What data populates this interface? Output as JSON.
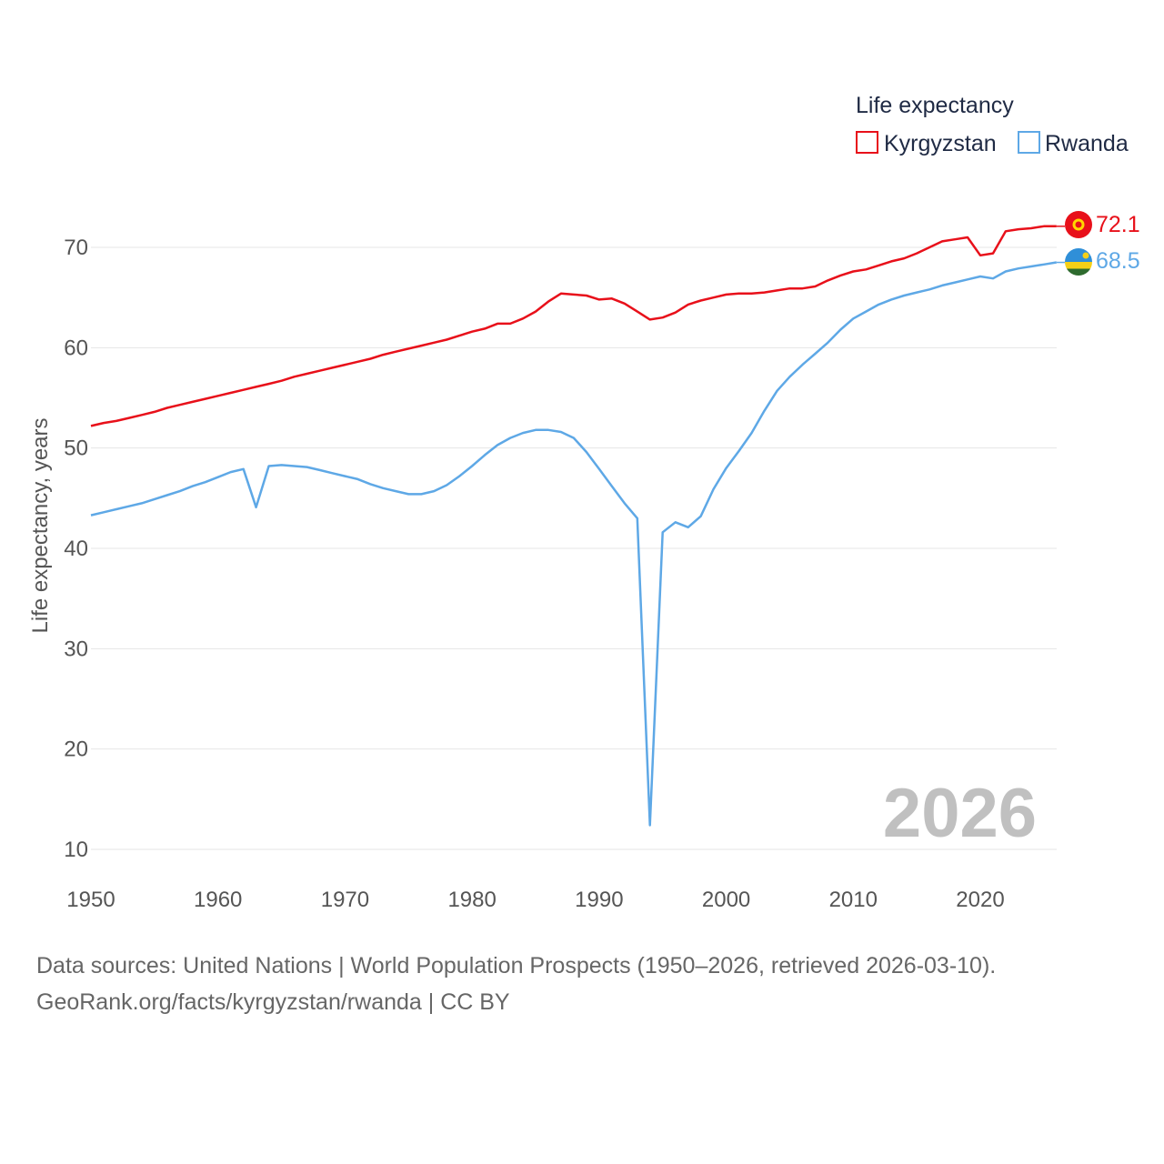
{
  "chart_data": {
    "type": "line",
    "title": "",
    "xlabel": "",
    "ylabel": "Life expectancy, years",
    "xlim": [
      1950,
      2026
    ],
    "ylim": [
      10,
      75
    ],
    "x_ticks": [
      1950,
      1960,
      1970,
      1980,
      1990,
      2000,
      2010,
      2020
    ],
    "y_ticks": [
      10,
      20,
      30,
      40,
      50,
      60,
      70
    ],
    "legend": {
      "title": "Life expectancy",
      "position": "top-right",
      "items": [
        "Kyrgyzstan",
        "Rwanda"
      ]
    },
    "year_label": "2026",
    "x": [
      1950,
      1951,
      1952,
      1953,
      1954,
      1955,
      1956,
      1957,
      1958,
      1959,
      1960,
      1961,
      1962,
      1963,
      1964,
      1965,
      1966,
      1967,
      1968,
      1969,
      1970,
      1971,
      1972,
      1973,
      1974,
      1975,
      1976,
      1977,
      1978,
      1979,
      1980,
      1981,
      1982,
      1983,
      1984,
      1985,
      1986,
      1987,
      1988,
      1989,
      1990,
      1991,
      1992,
      1993,
      1994,
      1995,
      1996,
      1997,
      1998,
      1999,
      2000,
      2001,
      2002,
      2003,
      2004,
      2005,
      2006,
      2007,
      2008,
      2009,
      2010,
      2011,
      2012,
      2013,
      2014,
      2015,
      2016,
      2017,
      2018,
      2019,
      2020,
      2021,
      2022,
      2023,
      2024,
      2025,
      2026
    ],
    "series": [
      {
        "name": "Kyrgyzstan",
        "color": "#e8101a",
        "end_label": "72.1",
        "values": [
          52.2,
          52.5,
          52.7,
          53.0,
          53.3,
          53.6,
          54.0,
          54.3,
          54.6,
          54.9,
          55.2,
          55.5,
          55.8,
          56.1,
          56.4,
          56.7,
          57.1,
          57.4,
          57.7,
          58.0,
          58.3,
          58.6,
          58.9,
          59.3,
          59.6,
          59.9,
          60.2,
          60.5,
          60.8,
          61.2,
          61.6,
          61.9,
          62.4,
          62.4,
          62.9,
          63.6,
          64.6,
          65.4,
          65.3,
          65.2,
          64.8,
          64.9,
          64.4,
          63.6,
          62.8,
          63.0,
          63.5,
          64.3,
          64.7,
          65.0,
          65.3,
          65.4,
          65.4,
          65.5,
          65.7,
          65.9,
          65.9,
          66.1,
          66.7,
          67.2,
          67.6,
          67.8,
          68.2,
          68.6,
          68.9,
          69.4,
          70.0,
          70.6,
          70.8,
          71.0,
          69.2,
          69.4,
          71.6,
          71.8,
          71.9,
          72.1,
          72.1
        ]
      },
      {
        "name": "Rwanda",
        "color": "#5ea8e6",
        "end_label": "68.5",
        "values": [
          43.3,
          43.6,
          43.9,
          44.2,
          44.5,
          44.9,
          45.3,
          45.7,
          46.2,
          46.6,
          47.1,
          47.6,
          47.9,
          44.1,
          48.2,
          48.3,
          48.2,
          48.1,
          47.8,
          47.5,
          47.2,
          46.9,
          46.4,
          46.0,
          45.7,
          45.4,
          45.4,
          45.7,
          46.3,
          47.2,
          48.2,
          49.3,
          50.3,
          51.0,
          51.5,
          51.8,
          51.8,
          51.6,
          51.0,
          49.6,
          47.9,
          46.2,
          44.5,
          43.0,
          12.4,
          41.6,
          42.6,
          42.1,
          43.2,
          45.9,
          48.0,
          49.7,
          51.5,
          53.7,
          55.7,
          57.1,
          58.3,
          59.4,
          60.5,
          61.8,
          62.9,
          63.6,
          64.3,
          64.8,
          65.2,
          65.5,
          65.8,
          66.2,
          66.5,
          66.8,
          67.1,
          66.9,
          67.6,
          67.9,
          68.1,
          68.3,
          68.5
        ]
      }
    ]
  },
  "footer": {
    "line1": "Data sources: United Nations | World Population Prospects (1950–2026, retrieved 2026-03-10).",
    "line2": "GeoRank.org/facts/kyrgyzstan/rwanda | CC BY"
  }
}
